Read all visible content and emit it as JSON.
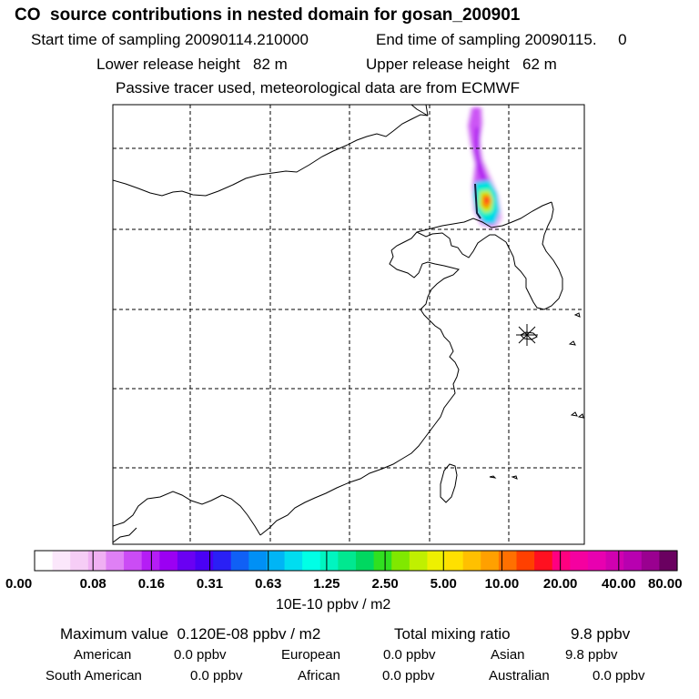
{
  "header": {
    "title": "CO  source contributions in nested domain for gosan_200901",
    "start_label": "Start time of sampling 20090114.210000",
    "end_label": "End time of sampling 20090115.     0",
    "lower_label": "Lower release height   82 m",
    "upper_label": "Upper release height   62 m",
    "tracer_note": "Passive tracer used, meteorological data are from ECMWF"
  },
  "map": {
    "receptor_symbol": "asterisk"
  },
  "colorbar": {
    "colors": [
      "#ffffff",
      "#fbe7fb",
      "#f6cdf6",
      "#f0b0f3",
      "#df80f5",
      "#cb4cf5",
      "#b51df5",
      "#9b00f3",
      "#6a00f3",
      "#4a00f5",
      "#2a20f5",
      "#1060f5",
      "#0090f5",
      "#00b5f5",
      "#00ddf0",
      "#00ffe6",
      "#00f5c0",
      "#00e890",
      "#00d860",
      "#30e020",
      "#80e800",
      "#c0f000",
      "#eef000",
      "#ffe000",
      "#ffc000",
      "#ffa000",
      "#ff7000",
      "#ff4000",
      "#ff1020",
      "#ff0080",
      "#f500a0",
      "#e800b0",
      "#d000b0",
      "#b800b0",
      "#9a0090",
      "#6a0060"
    ],
    "labels": [
      "0.00",
      "0.08",
      "0.16",
      "0.31",
      "0.63",
      "1.25",
      "2.50",
      "5.00",
      "10.00",
      "20.00",
      "40.00",
      "80.00"
    ],
    "unit": "10E-10 ppbv / m2"
  },
  "stats": {
    "max_label": "Maximum value  0.120E-08 ppbv / m2",
    "total_label": "Total mixing ratio",
    "total_value": "9.8 ppbv",
    "regions": [
      {
        "name": "American",
        "value": "0.0 ppbv"
      },
      {
        "name": "European",
        "value": "0.0 ppbv"
      },
      {
        "name": "Asian",
        "value": "9.8 ppbv"
      },
      {
        "name": "South American",
        "value": "0.0 ppbv"
      },
      {
        "name": "African",
        "value": "0.0 ppbv"
      },
      {
        "name": "Australian",
        "value": "0.0 ppbv"
      }
    ]
  }
}
